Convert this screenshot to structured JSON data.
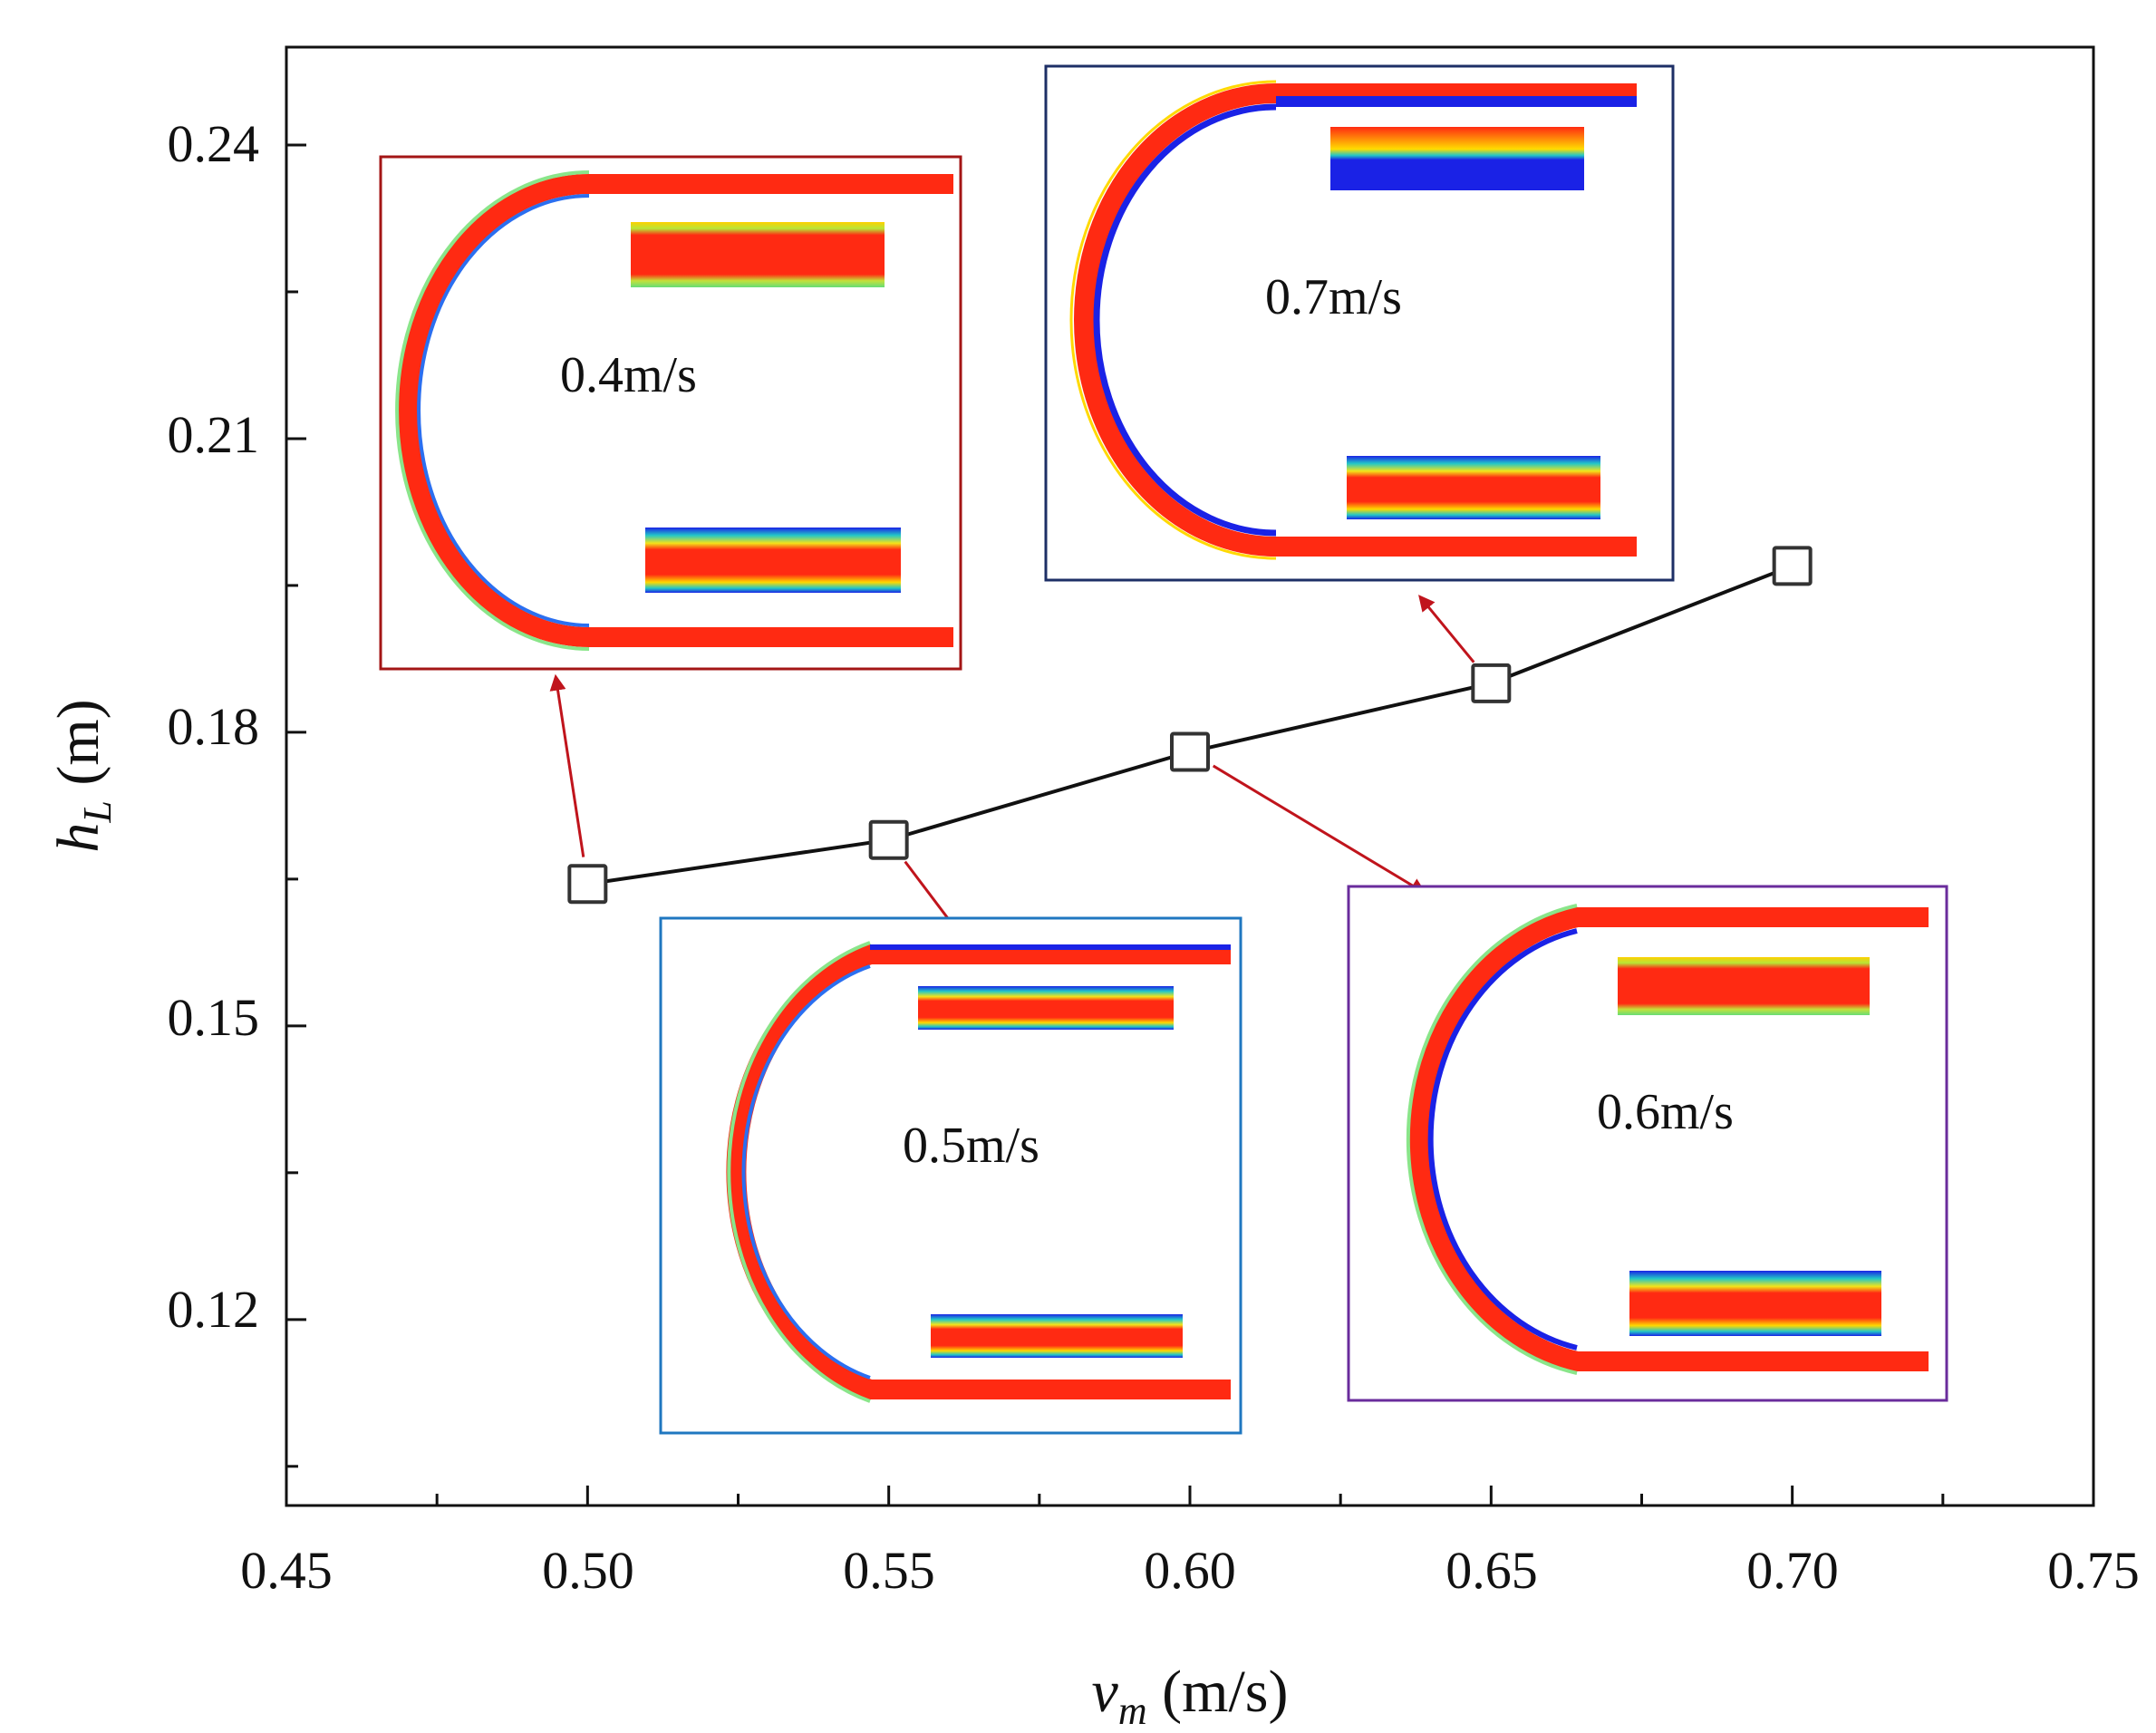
{
  "chart_data": {
    "type": "line",
    "xlabel": {
      "symbol": "v",
      "sub": "m",
      "unit": " (m/s)"
    },
    "ylabel": {
      "symbol": "h",
      "sub": "L",
      "unit": " (m)"
    },
    "xlim": [
      0.45,
      0.75
    ],
    "ylim": [
      0.101,
      0.25
    ],
    "x_ticks": [
      "0.45",
      "0.50",
      "0.55",
      "0.60",
      "0.65",
      "0.70",
      "0.75"
    ],
    "y_ticks": [
      "0.12",
      "0.15",
      "0.18",
      "0.21",
      "0.24"
    ],
    "series": [
      {
        "name": "h_L",
        "marker": "open-square",
        "x": [
          0.5,
          0.55,
          0.6,
          0.65,
          0.7
        ],
        "values": [
          0.1645,
          0.169,
          0.178,
          0.185,
          0.197
        ]
      }
    ],
    "insets": [
      {
        "label": "0.4m/s",
        "point": 0,
        "frame_color": "#a31515"
      },
      {
        "label": "0.5m/s",
        "point": 1,
        "frame_color": "#1f77c0"
      },
      {
        "label": "0.6m/s",
        "point": 2,
        "frame_color": "#6a2c9c"
      },
      {
        "label": "0.7m/s",
        "point": 3,
        "frame_color": "#1d2f66"
      }
    ],
    "colors": {
      "arrow": "#c0141c",
      "line": "#111111",
      "marker_edge": "#333333"
    }
  }
}
